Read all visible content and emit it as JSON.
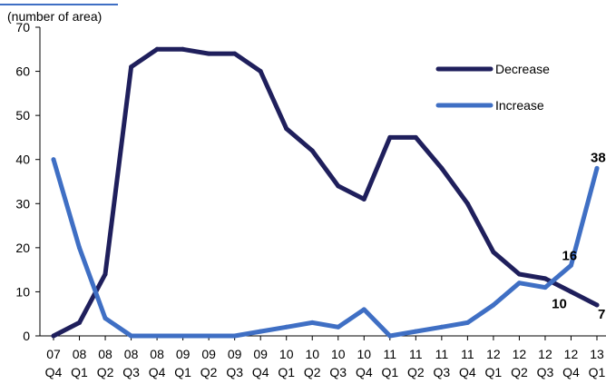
{
  "chart_data": {
    "type": "line",
    "ylabel": "(number of area)",
    "ylim": [
      0,
      70
    ],
    "yticks": [
      "0",
      "10",
      "20",
      "30",
      "40",
      "50",
      "60",
      "70"
    ],
    "grid": false,
    "legend_position": "top-right",
    "categories": [
      [
        "07",
        "Q4"
      ],
      [
        "08",
        "Q1"
      ],
      [
        "08",
        "Q2"
      ],
      [
        "08",
        "Q3"
      ],
      [
        "08",
        "Q4"
      ],
      [
        "09",
        "Q1"
      ],
      [
        "09",
        "Q2"
      ],
      [
        "09",
        "Q3"
      ],
      [
        "09",
        "Q4"
      ],
      [
        "10",
        "Q1"
      ],
      [
        "10",
        "Q2"
      ],
      [
        "10",
        "Q3"
      ],
      [
        "10",
        "Q4"
      ],
      [
        "11",
        "Q1"
      ],
      [
        "11",
        "Q2"
      ],
      [
        "11",
        "Q3"
      ],
      [
        "11",
        "Q4"
      ],
      [
        "12",
        "Q1"
      ],
      [
        "12",
        "Q2"
      ],
      [
        "12",
        "Q3"
      ],
      [
        "12",
        "Q4"
      ],
      [
        "13",
        "Q1"
      ]
    ],
    "series": [
      {
        "name": "Decrease",
        "color": "#1f1f5c",
        "values": [
          0,
          3,
          14,
          61,
          65,
          65,
          64,
          64,
          60,
          47,
          42,
          34,
          31,
          45,
          45,
          38,
          30,
          19,
          14,
          13,
          10,
          7
        ],
        "data_labels": [
          {
            "index": 20,
            "text": "10"
          },
          {
            "index": 21,
            "text": "7"
          }
        ]
      },
      {
        "name": "Increase",
        "color": "#3f6fc4",
        "values": [
          40,
          20,
          4,
          0,
          0,
          0,
          0,
          0,
          1,
          2,
          3,
          2,
          6,
          0,
          1,
          2,
          3,
          7,
          12,
          11,
          16,
          38
        ],
        "data_labels": [
          {
            "index": 20,
            "text": "16"
          },
          {
            "index": 21,
            "text": "38"
          }
        ]
      }
    ]
  }
}
